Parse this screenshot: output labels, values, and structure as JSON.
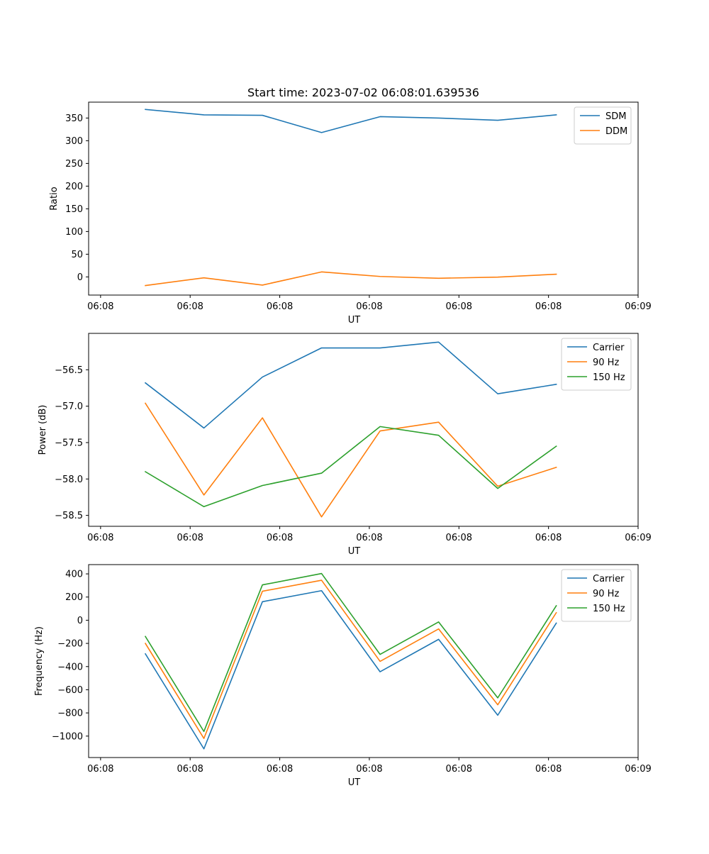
{
  "colors": {
    "c0": "#1f77b4",
    "c1": "#ff7f0e",
    "c2": "#2ca02c",
    "axis": "#000000",
    "legend_border": "#cccccc"
  },
  "chart_data": [
    {
      "type": "line",
      "title": "Start time: 2023-07-02 06:08:01.639536",
      "xlabel": "UT",
      "ylabel": "Ratio",
      "xlim": [
        -0.2,
        9.0
      ],
      "ylim": [
        -40,
        385
      ],
      "xticks": [
        0,
        1.5,
        3,
        4.5,
        6,
        7.5,
        9
      ],
      "xtick_labels": [
        "06:08",
        "06:08",
        "06:08",
        "06:08",
        "06:08",
        "06:08",
        "06:09"
      ],
      "yticks": [
        0,
        50,
        100,
        150,
        200,
        250,
        300,
        350
      ],
      "ytick_labels": [
        "0",
        "50",
        "100",
        "150",
        "200",
        "250",
        "300",
        "350"
      ],
      "x": [
        0.75,
        1.73,
        2.71,
        3.7,
        4.68,
        5.66,
        6.65,
        7.63
      ],
      "legend": "top-right",
      "series": [
        {
          "name": "SDM",
          "color": "#1f77b4",
          "values": [
            369,
            357,
            356,
            318,
            353,
            350,
            345,
            357
          ]
        },
        {
          "name": "DDM",
          "color": "#ff7f0e",
          "values": [
            -19,
            -2,
            -18,
            11,
            1,
            -3,
            -0.5,
            6
          ]
        }
      ]
    },
    {
      "type": "line",
      "title": "",
      "xlabel": "UT",
      "ylabel": "Power (dB)",
      "xlim": [
        -0.2,
        9.0
      ],
      "ylim": [
        -58.65,
        -56.0
      ],
      "xticks": [
        0,
        1.5,
        3,
        4.5,
        6,
        7.5,
        9
      ],
      "xtick_labels": [
        "06:08",
        "06:08",
        "06:08",
        "06:08",
        "06:08",
        "06:08",
        "06:09"
      ],
      "yticks": [
        -58.5,
        -58.0,
        -57.5,
        -57.0,
        -56.5
      ],
      "ytick_labels": [
        "−58.5",
        "−58.0",
        "−57.5",
        "−57.0",
        "−56.5"
      ],
      "x": [
        0.75,
        1.73,
        2.71,
        3.7,
        4.68,
        5.66,
        6.65,
        7.63
      ],
      "legend": "top-right",
      "series": [
        {
          "name": "Carrier",
          "color": "#1f77b4",
          "values": [
            -56.68,
            -57.3,
            -56.6,
            -56.2,
            -56.2,
            -56.12,
            -56.83,
            -56.7
          ]
        },
        {
          "name": "90 Hz",
          "color": "#ff7f0e",
          "values": [
            -56.96,
            -58.22,
            -57.16,
            -58.52,
            -57.34,
            -57.22,
            -58.1,
            -57.84
          ]
        },
        {
          "name": "150 Hz",
          "color": "#2ca02c",
          "values": [
            -57.9,
            -58.38,
            -58.09,
            -57.92,
            -57.28,
            -57.4,
            -58.13,
            -57.55
          ]
        }
      ]
    },
    {
      "type": "line",
      "title": "",
      "xlabel": "UT",
      "ylabel": "Frequency (Hz)",
      "xlim": [
        -0.2,
        9.0
      ],
      "ylim": [
        -1185,
        480
      ],
      "xticks": [
        0,
        1.5,
        3,
        4.5,
        6,
        7.5,
        9
      ],
      "xtick_labels": [
        "06:08",
        "06:08",
        "06:08",
        "06:08",
        "06:08",
        "06:08",
        "06:09"
      ],
      "yticks": [
        -1000,
        -800,
        -600,
        -400,
        -200,
        0,
        200,
        400
      ],
      "ytick_labels": [
        "−1000",
        "−800",
        "−600",
        "−400",
        "−200",
        "0",
        "200",
        "400"
      ],
      "x": [
        0.75,
        1.73,
        2.71,
        3.7,
        4.68,
        5.66,
        6.65,
        7.63
      ],
      "legend": "top-right",
      "series": [
        {
          "name": "Carrier",
          "color": "#1f77b4",
          "values": [
            -290,
            -1110,
            160,
            255,
            -445,
            -165,
            -820,
            -25
          ]
        },
        {
          "name": "90 Hz",
          "color": "#ff7f0e",
          "values": [
            -200,
            -1020,
            250,
            345,
            -355,
            -75,
            -730,
            65
          ]
        },
        {
          "name": "150 Hz",
          "color": "#2ca02c",
          "values": [
            -140,
            -960,
            305,
            403,
            -295,
            -15,
            -670,
            125
          ]
        }
      ]
    }
  ]
}
